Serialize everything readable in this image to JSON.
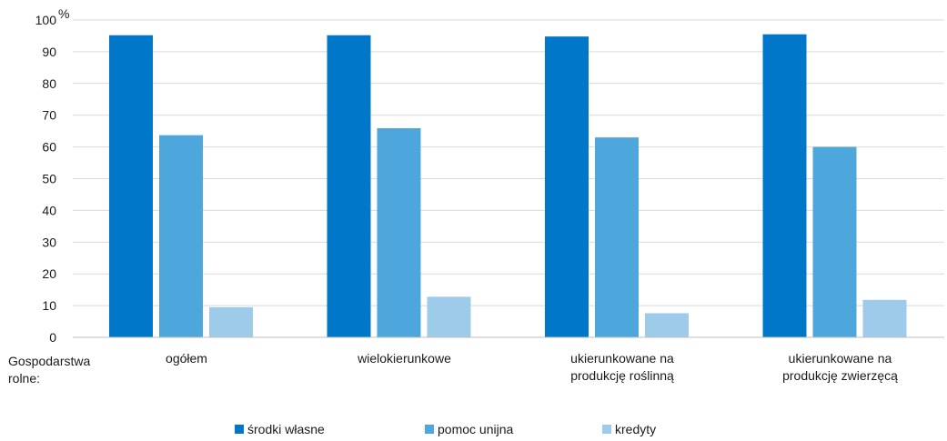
{
  "chart_data": {
    "type": "bar",
    "title": "",
    "ylabel": "",
    "y_unit": "%",
    "ylim": [
      0,
      100
    ],
    "yticks": [
      0,
      10,
      20,
      30,
      40,
      50,
      60,
      70,
      80,
      90,
      100
    ],
    "grid": true,
    "legend_position": "bottom",
    "x_title_lines": [
      "Gospodarstwa",
      "rolne:"
    ],
    "categories": [
      [
        "ogółem"
      ],
      [
        "wielokierunkowe"
      ],
      [
        "ukierunkowane na",
        "produkcję roślinną"
      ],
      [
        "ukierunkowane na",
        "produkcję zwierzęcą"
      ]
    ],
    "series": [
      {
        "name": "środki własne",
        "color": "#0077c8",
        "values": [
          95.2,
          95.2,
          94.8,
          95.5
        ]
      },
      {
        "name": "pomoc unijna",
        "color": "#4da6dc",
        "values": [
          63.7,
          65.9,
          63.0,
          60.0
        ]
      },
      {
        "name": "kredyty",
        "color": "#9fcbeb",
        "values": [
          9.5,
          12.8,
          7.6,
          11.8
        ]
      }
    ]
  }
}
